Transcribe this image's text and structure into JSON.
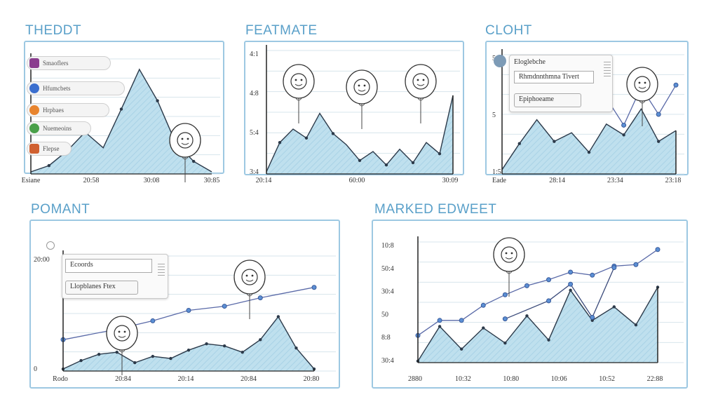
{
  "panels": [
    {
      "title": "THEDDT",
      "chart_data": {
        "type": "area",
        "x": [
          0,
          1,
          2,
          3,
          4,
          5,
          6,
          7,
          8,
          9,
          10
        ],
        "values": [
          2,
          8,
          22,
          40,
          25,
          62,
          100,
          70,
          30,
          12,
          2
        ],
        "xticks": [
          "Esiane",
          "20:58",
          "30:08",
          "30:85"
        ],
        "yticks": [],
        "ylim": [
          0,
          110
        ]
      },
      "rows": [
        {
          "label": "Smaoflers",
          "color": "#8b3d8f"
        },
        {
          "label": "Hfumcbets",
          "color": "#3b6fcf"
        },
        {
          "label": "Hrpbaes",
          "color": "#e8842e"
        },
        {
          "label": "Nuemeoins",
          "color": "#4aa04a"
        },
        {
          "label": "Flepse",
          "color": "#d06030"
        }
      ]
    },
    {
      "title": "FEATMATE",
      "chart_data": {
        "type": "area",
        "x": [
          0,
          1,
          2,
          3,
          4,
          5,
          6,
          7,
          8,
          9,
          10,
          11,
          12,
          13,
          14
        ],
        "values": [
          2,
          28,
          40,
          32,
          54,
          36,
          26,
          12,
          20,
          8,
          22,
          10,
          28,
          18,
          70
        ],
        "xticks": [
          "20:14",
          "60:00",
          "30:09"
        ],
        "yticks": [
          "4:1",
          "4:8",
          "5:4",
          "3:4"
        ],
        "ylim": [
          0,
          110
        ]
      }
    },
    {
      "title": "CLOHT",
      "chart_data": {
        "type": "area",
        "x": [
          0,
          1,
          2,
          3,
          4,
          5,
          6,
          7,
          8,
          9,
          10
        ],
        "values": [
          4,
          28,
          50,
          30,
          38,
          20,
          46,
          36,
          60,
          30,
          40
        ],
        "series": [
          {
            "values": [
              null,
              null,
              null,
              null,
              null,
              null,
              70,
              45,
              80,
              55,
              82
            ]
          }
        ],
        "xticks": [
          "Eade",
          "28:14",
          "23:34",
          "23:18"
        ],
        "yticks": [
          "5",
          "5",
          "1:5"
        ],
        "ylim": [
          0,
          110
        ]
      },
      "card": {
        "head": "Eloglebche",
        "field1": "Rhmdnnthmna Tivert",
        "field2": "Epiphoeame"
      }
    },
    {
      "title": "POMANT",
      "chart_data": {
        "type": "area",
        "x": [
          0,
          1,
          2,
          3,
          4,
          5,
          6,
          7,
          8,
          9,
          10,
          11,
          12,
          13,
          14
        ],
        "values": [
          2,
          10,
          16,
          18,
          8,
          14,
          12,
          20,
          26,
          24,
          18,
          30,
          52,
          22,
          2
        ],
        "series": [
          {
            "values": [
              30,
              null,
              null,
              40,
              null,
              48,
              null,
              58,
              null,
              62,
              null,
              70,
              null,
              null,
              80
            ]
          }
        ],
        "xticks": [
          "Rodo",
          "20:84",
          "20:14",
          "20:84",
          "20:80"
        ],
        "yticks": [
          "20:00",
          "0"
        ],
        "ylim": [
          0,
          110
        ]
      },
      "card": {
        "field1": "Ecoords",
        "field2": "Llopblanes Ftex"
      }
    },
    {
      "title": "MARKED EDWEET",
      "chart_data": {
        "type": "area",
        "x": [
          0,
          1,
          2,
          3,
          4,
          5,
          6,
          7,
          8,
          9,
          10,
          11
        ],
        "values": [
          2,
          48,
          18,
          46,
          26,
          62,
          30,
          96,
          56,
          74,
          50,
          100
        ],
        "series": [
          {
            "values": [
              36,
              56,
              56,
              76,
              90,
              102,
              110,
              120,
              116,
              128,
              130,
              150
            ]
          },
          {
            "values": [
              null,
              null,
              null,
              null,
              58,
              null,
              82,
              104,
              60,
              126,
              null,
              null
            ]
          }
        ],
        "xticks": [
          "2880",
          "10:32",
          "10:80",
          "10:06",
          "10:52",
          "22:88"
        ],
        "yticks": [
          "10:8",
          "50:4",
          "30:4",
          "50",
          "8:8",
          "30:4"
        ],
        "ylim": [
          0,
          160
        ]
      }
    }
  ]
}
